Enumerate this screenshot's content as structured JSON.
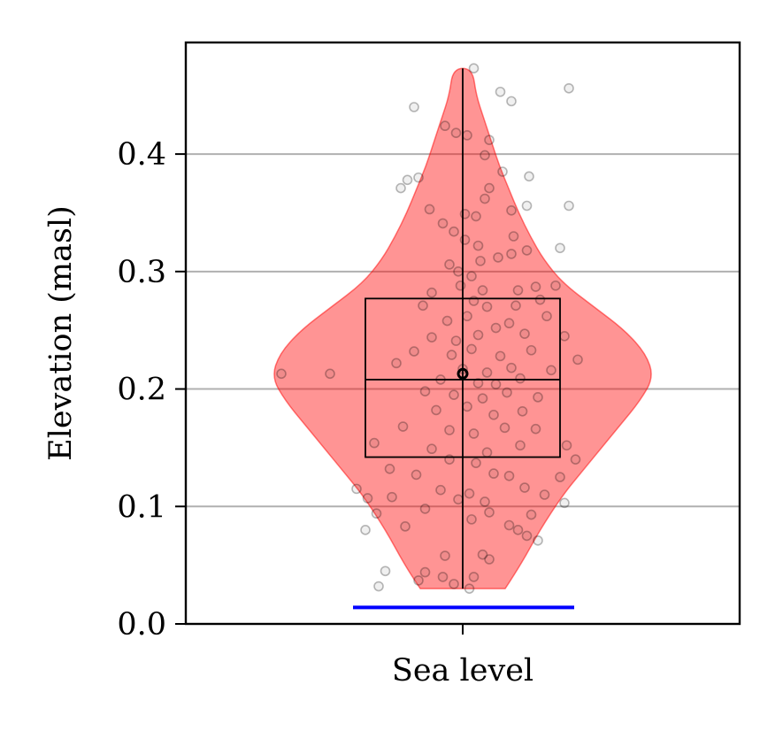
{
  "chart_data": {
    "type": "violin",
    "ylabel": "Elevation (masl)",
    "categories": [
      "Sea level"
    ],
    "ylim": [
      0.0,
      0.495
    ],
    "yticks": [
      {
        "value": 0.0,
        "label": "0.0"
      },
      {
        "value": 0.1,
        "label": "0.1"
      },
      {
        "value": 0.2,
        "label": "0.2"
      },
      {
        "value": 0.3,
        "label": "0.3"
      },
      {
        "value": 0.4,
        "label": "0.4"
      }
    ],
    "grid": "y-major",
    "violin": {
      "color": "#ff0000",
      "min": 0.03,
      "max": 0.473,
      "density_profile": [
        [
          0.03,
          0.22
        ],
        [
          0.05,
          0.3
        ],
        [
          0.08,
          0.4
        ],
        [
          0.11,
          0.52
        ],
        [
          0.13,
          0.62
        ],
        [
          0.15,
          0.72
        ],
        [
          0.17,
          0.82
        ],
        [
          0.19,
          0.92
        ],
        [
          0.21,
          0.99
        ],
        [
          0.23,
          0.95
        ],
        [
          0.25,
          0.84
        ],
        [
          0.27,
          0.68
        ],
        [
          0.29,
          0.52
        ],
        [
          0.31,
          0.42
        ],
        [
          0.33,
          0.35
        ],
        [
          0.35,
          0.29
        ],
        [
          0.37,
          0.24
        ],
        [
          0.39,
          0.19
        ],
        [
          0.41,
          0.15
        ],
        [
          0.43,
          0.11
        ],
        [
          0.45,
          0.07
        ],
        [
          0.473,
          0.05
        ]
      ]
    },
    "box": {
      "q1": 0.142,
      "median": 0.208,
      "q3": 0.277,
      "whisker_low": 0.03,
      "whisker_high": 0.473
    },
    "mean": 0.213,
    "sea_level_line": {
      "value": 0.014,
      "color": "#0000ff"
    },
    "points": [
      [
        0.05,
        0.473
      ],
      [
        0.17,
        0.453
      ],
      [
        0.48,
        0.456
      ],
      [
        -0.22,
        0.44
      ],
      [
        0.22,
        0.445
      ],
      [
        -0.08,
        0.424
      ],
      [
        -0.03,
        0.418
      ],
      [
        0.02,
        0.416
      ],
      [
        -0.2,
        0.38
      ],
      [
        0.12,
        0.412
      ],
      [
        0.1,
        0.399
      ],
      [
        0.18,
        0.385
      ],
      [
        0.3,
        0.381
      ],
      [
        -0.28,
        0.371
      ],
      [
        -0.25,
        0.378
      ],
      [
        0.12,
        0.371
      ],
      [
        0.1,
        0.362
      ],
      [
        -0.15,
        0.353
      ],
      [
        0.01,
        0.349
      ],
      [
        0.06,
        0.347
      ],
      [
        0.22,
        0.352
      ],
      [
        0.29,
        0.356
      ],
      [
        0.48,
        0.356
      ],
      [
        -0.09,
        0.341
      ],
      [
        -0.04,
        0.334
      ],
      [
        0.23,
        0.33
      ],
      [
        0.01,
        0.327
      ],
      [
        0.07,
        0.322
      ],
      [
        0.16,
        0.312
      ],
      [
        0.22,
        0.315
      ],
      [
        0.29,
        0.318
      ],
      [
        0.44,
        0.32
      ],
      [
        -0.06,
        0.306
      ],
      [
        -0.02,
        0.3
      ],
      [
        0.04,
        0.296
      ],
      [
        0.08,
        0.309
      ],
      [
        -0.01,
        0.288
      ],
      [
        0.09,
        0.284
      ],
      [
        -0.14,
        0.282
      ],
      [
        0.25,
        0.284
      ],
      [
        0.33,
        0.287
      ],
      [
        0.42,
        0.288
      ],
      [
        -0.18,
        0.271
      ],
      [
        0.05,
        0.275
      ],
      [
        0.11,
        0.27
      ],
      [
        0.24,
        0.271
      ],
      [
        0.35,
        0.276
      ],
      [
        -0.07,
        0.258
      ],
      [
        0.02,
        0.262
      ],
      [
        0.15,
        0.252
      ],
      [
        0.21,
        0.256
      ],
      [
        0.38,
        0.262
      ],
      [
        -0.14,
        0.244
      ],
      [
        -0.03,
        0.241
      ],
      [
        0.07,
        0.246
      ],
      [
        0.28,
        0.247
      ],
      [
        0.46,
        0.245
      ],
      [
        -0.22,
        0.232
      ],
      [
        -0.05,
        0.229
      ],
      [
        0.04,
        0.234
      ],
      [
        0.17,
        0.228
      ],
      [
        0.31,
        0.233
      ],
      [
        -0.3,
        0.222
      ],
      [
        0.0,
        0.217
      ],
      [
        0.11,
        0.214
      ],
      [
        0.22,
        0.218
      ],
      [
        0.4,
        0.216
      ],
      [
        -0.1,
        0.208
      ],
      [
        0.07,
        0.205
      ],
      [
        0.15,
        0.204
      ],
      [
        0.26,
        0.209
      ],
      [
        0.52,
        0.225
      ],
      [
        -0.82,
        0.213
      ],
      [
        -0.6,
        0.213
      ],
      [
        -0.17,
        0.198
      ],
      [
        -0.04,
        0.195
      ],
      [
        0.09,
        0.192
      ],
      [
        0.2,
        0.197
      ],
      [
        0.34,
        0.193
      ],
      [
        -0.12,
        0.182
      ],
      [
        0.02,
        0.185
      ],
      [
        0.14,
        0.178
      ],
      [
        0.27,
        0.181
      ],
      [
        -0.27,
        0.168
      ],
      [
        -0.06,
        0.165
      ],
      [
        0.05,
        0.162
      ],
      [
        0.19,
        0.167
      ],
      [
        0.33,
        0.166
      ],
      [
        -0.4,
        0.154
      ],
      [
        -0.14,
        0.149
      ],
      [
        0.11,
        0.146
      ],
      [
        0.26,
        0.152
      ],
      [
        0.47,
        0.152
      ],
      [
        -0.06,
        0.14
      ],
      [
        0.06,
        0.137
      ],
      [
        0.51,
        0.14
      ],
      [
        -0.33,
        0.132
      ],
      [
        -0.21,
        0.127
      ],
      [
        0.14,
        0.128
      ],
      [
        0.21,
        0.126
      ],
      [
        0.44,
        0.125
      ],
      [
        -0.48,
        0.115
      ],
      [
        -0.1,
        0.114
      ],
      [
        0.03,
        0.111
      ],
      [
        0.28,
        0.116
      ],
      [
        -0.43,
        0.107
      ],
      [
        -0.32,
        0.108
      ],
      [
        -0.02,
        0.106
      ],
      [
        0.1,
        0.104
      ],
      [
        0.37,
        0.11
      ],
      [
        -0.39,
        0.094
      ],
      [
        -0.17,
        0.098
      ],
      [
        0.12,
        0.095
      ],
      [
        0.31,
        0.093
      ],
      [
        0.46,
        0.103
      ],
      [
        -0.26,
        0.083
      ],
      [
        0.04,
        0.089
      ],
      [
        0.21,
        0.084
      ],
      [
        0.29,
        0.075
      ],
      [
        0.34,
        0.071
      ],
      [
        -0.44,
        0.08
      ],
      [
        0.25,
        0.08
      ],
      [
        -0.08,
        0.058
      ],
      [
        0.09,
        0.059
      ],
      [
        0.12,
        0.055
      ],
      [
        -0.35,
        0.045
      ],
      [
        -0.17,
        0.044
      ],
      [
        -0.09,
        0.04
      ],
      [
        0.05,
        0.04
      ],
      [
        -0.38,
        0.032
      ],
      [
        -0.04,
        0.034
      ],
      [
        -0.2,
        0.037
      ],
      [
        0.03,
        0.03
      ]
    ]
  }
}
